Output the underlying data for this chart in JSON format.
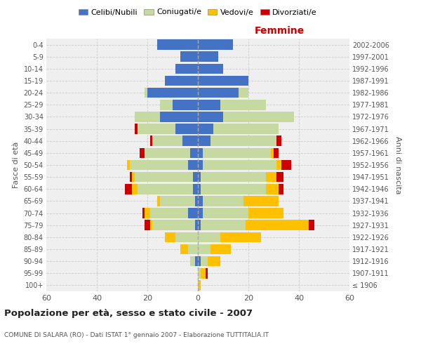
{
  "age_groups": [
    "100+",
    "95-99",
    "90-94",
    "85-89",
    "80-84",
    "75-79",
    "70-74",
    "65-69",
    "60-64",
    "55-59",
    "50-54",
    "45-49",
    "40-44",
    "35-39",
    "30-34",
    "25-29",
    "20-24",
    "15-19",
    "10-14",
    "5-9",
    "0-4"
  ],
  "birth_years": [
    "≤ 1906",
    "1907-1911",
    "1912-1916",
    "1917-1921",
    "1922-1926",
    "1927-1931",
    "1932-1936",
    "1937-1941",
    "1942-1946",
    "1947-1951",
    "1952-1956",
    "1957-1961",
    "1962-1966",
    "1967-1971",
    "1972-1976",
    "1977-1981",
    "1982-1986",
    "1987-1991",
    "1992-1996",
    "1997-2001",
    "2002-2006"
  ],
  "males": {
    "celibi": [
      0,
      0,
      1,
      0,
      0,
      1,
      4,
      1,
      2,
      2,
      4,
      3,
      6,
      9,
      15,
      10,
      20,
      13,
      9,
      7,
      16
    ],
    "coniugati": [
      0,
      0,
      2,
      4,
      9,
      17,
      15,
      14,
      22,
      23,
      23,
      18,
      12,
      15,
      10,
      5,
      1,
      0,
      0,
      0,
      0
    ],
    "vedovi": [
      0,
      0,
      0,
      3,
      4,
      1,
      2,
      1,
      2,
      1,
      1,
      0,
      0,
      0,
      0,
      0,
      0,
      0,
      0,
      0,
      0
    ],
    "divorziati": [
      0,
      0,
      0,
      0,
      0,
      2,
      1,
      0,
      3,
      1,
      0,
      2,
      1,
      1,
      0,
      0,
      0,
      0,
      0,
      0,
      0
    ]
  },
  "females": {
    "nubili": [
      0,
      0,
      1,
      0,
      0,
      1,
      2,
      2,
      1,
      1,
      2,
      2,
      5,
      6,
      10,
      9,
      16,
      20,
      10,
      8,
      14
    ],
    "coniugate": [
      0,
      1,
      3,
      5,
      9,
      18,
      18,
      16,
      26,
      26,
      29,
      27,
      26,
      26,
      28,
      18,
      4,
      0,
      0,
      0,
      0
    ],
    "vedove": [
      1,
      2,
      5,
      8,
      16,
      25,
      14,
      14,
      5,
      4,
      2,
      1,
      0,
      0,
      0,
      0,
      0,
      0,
      0,
      0,
      0
    ],
    "divorziate": [
      0,
      1,
      0,
      0,
      0,
      2,
      0,
      0,
      2,
      3,
      4,
      2,
      2,
      0,
      0,
      0,
      0,
      0,
      0,
      0,
      0
    ]
  },
  "colors": {
    "celibi": "#4472c4",
    "coniugati": "#c5d9a0",
    "vedovi": "#ffc000",
    "divorziati": "#cc0000"
  },
  "xlim": 60,
  "title": "Popolazione per età, sesso e stato civile - 2007",
  "subtitle": "COMUNE DI SALARA (RO) - Dati ISTAT 1° gennaio 2007 - Elaborazione TUTTITALIA.IT",
  "legend_labels": [
    "Celibi/Nubili",
    "Coniugati/e",
    "Vedovi/e",
    "Divorziati/e"
  ],
  "xlabel_right": "Femmine",
  "ylabel_left": "Fasce di età",
  "ylabel_right": "Anni di nascita",
  "background_color": "#ffffff",
  "plot_bg_color": "#efefef",
  "grid_color": "#cccccc"
}
